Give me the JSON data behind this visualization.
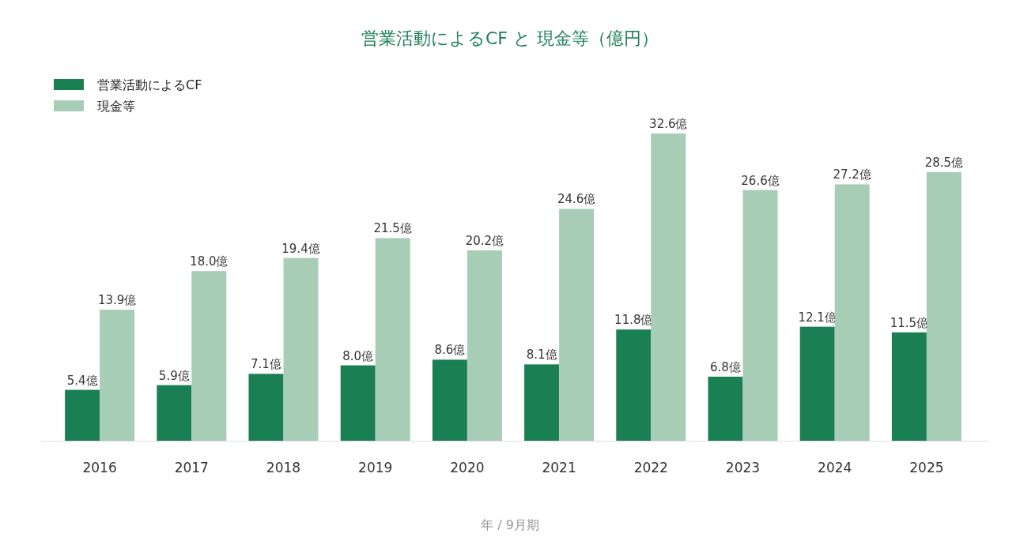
{
  "chart_data": {
    "type": "bar",
    "title": "営業活動によるCF と 現金等（億円）",
    "xlabel": "年 / 9月期",
    "legend": "top left",
    "categories": [
      "2016",
      "2017",
      "2018",
      "2019",
      "2020",
      "2021",
      "2022",
      "2023",
      "2024",
      "2025"
    ],
    "series": [
      {
        "name": "営業活動によるCF",
        "color": "#1b7f54",
        "values": [
          5.4,
          5.9,
          7.1,
          8.0,
          8.6,
          8.1,
          11.8,
          6.8,
          12.1,
          11.5
        ],
        "value_labels": [
          "5.4億",
          "5.9億",
          "7.1億",
          "8.0億",
          "8.6億",
          "8.1億",
          "11.8億",
          "6.8億",
          "12.1億",
          "11.5億"
        ]
      },
      {
        "name": "現金等",
        "color": "#a8cdb6",
        "values": [
          13.9,
          18.0,
          19.4,
          21.5,
          20.2,
          24.6,
          32.6,
          26.6,
          27.2,
          28.5
        ],
        "value_labels": [
          "13.9億",
          "18.0億",
          "19.4億",
          "21.5億",
          "20.2億",
          "24.6億",
          "32.6億",
          "26.6億",
          "27.2億",
          "28.5億"
        ]
      }
    ]
  }
}
